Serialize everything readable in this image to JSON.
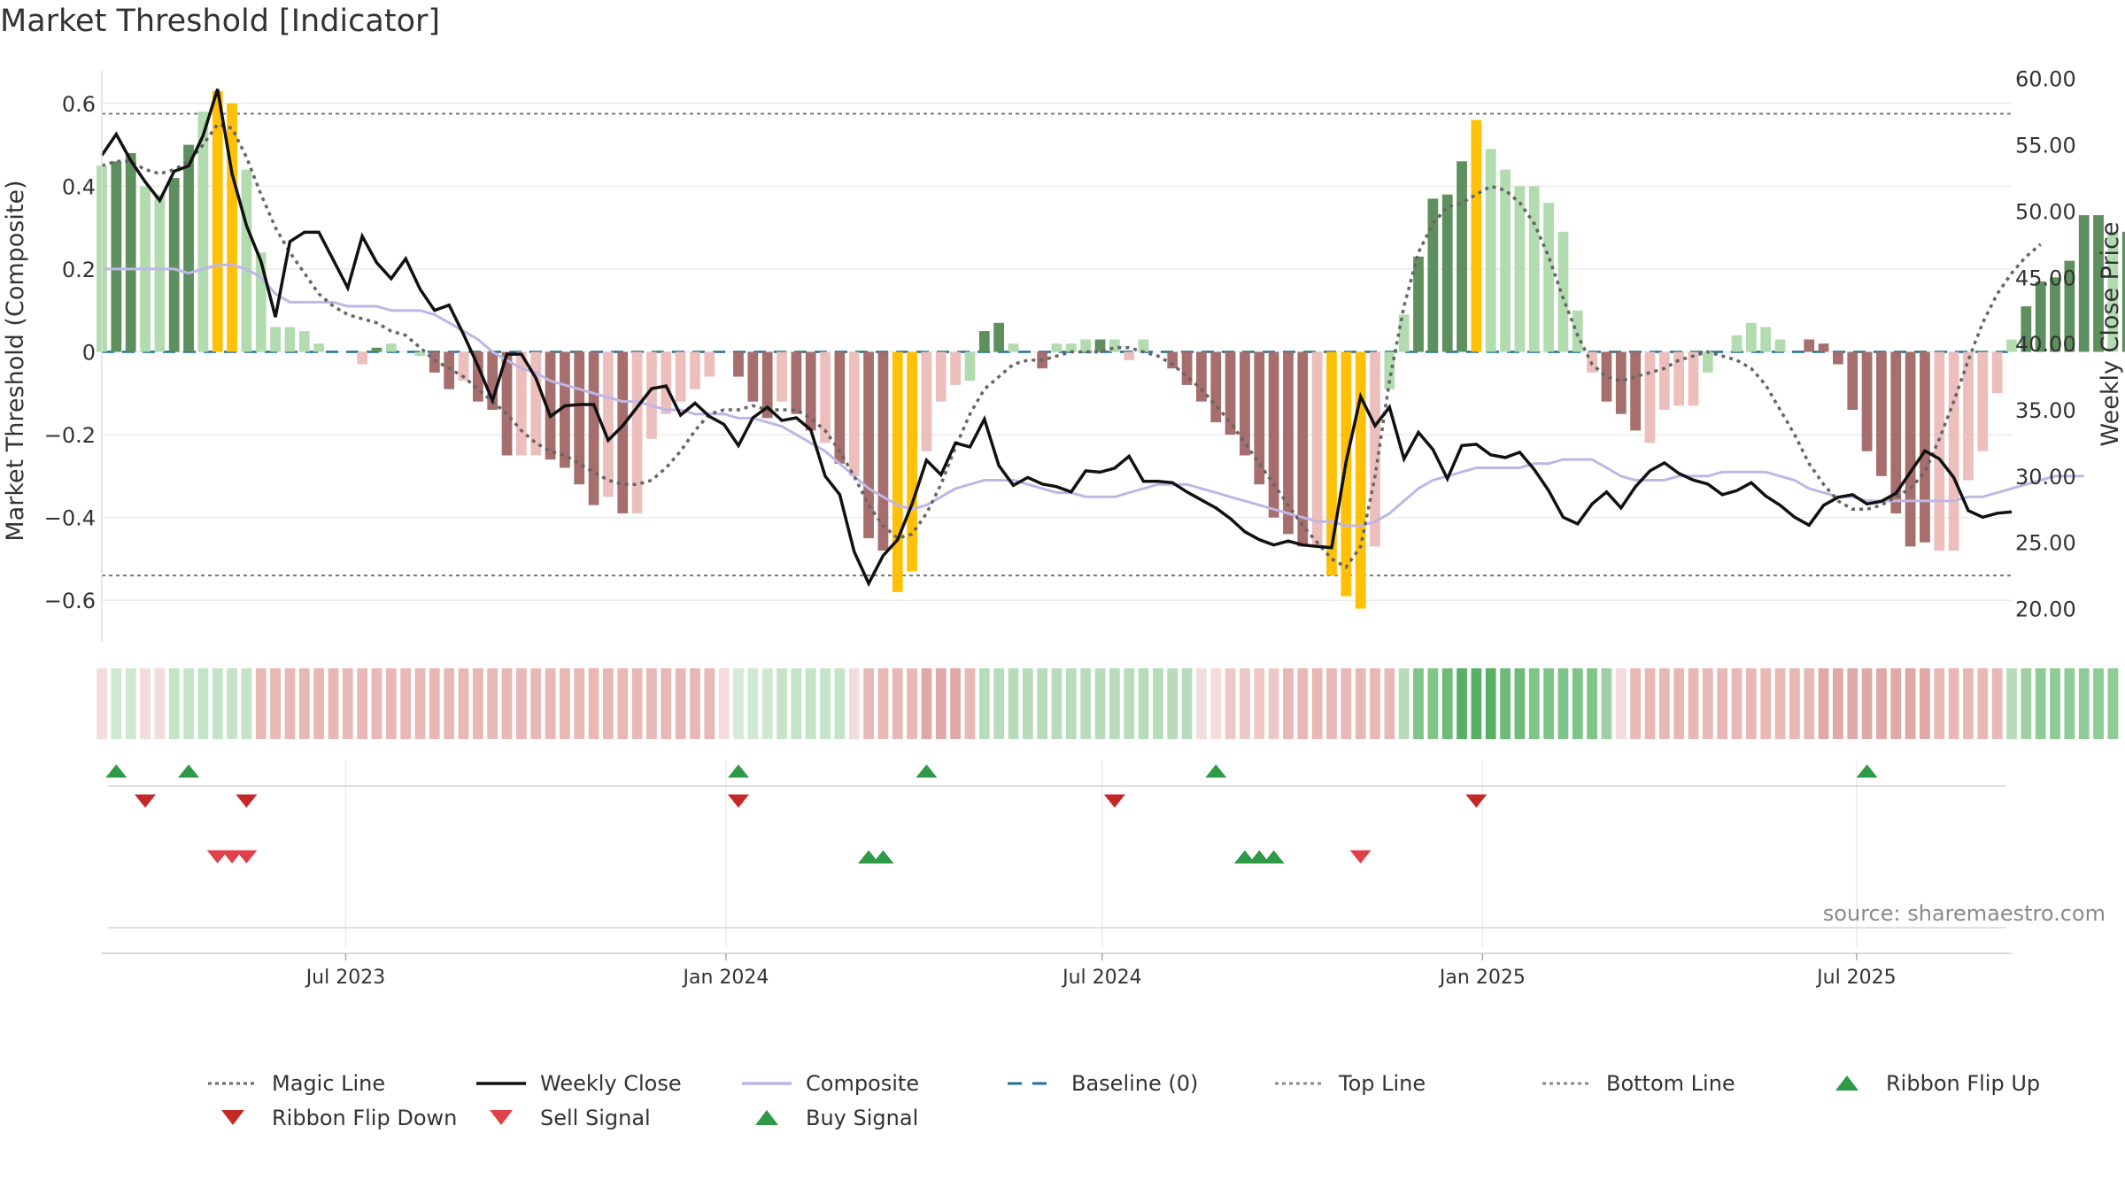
{
  "title": "Market Threshold [Indicator]",
  "source": "source: sharemaestro.com",
  "colors": {
    "bar_pos_strong": "#5e8f5e",
    "bar_pos_weak": "#b2dbb0",
    "bar_neg_strong": "#a66e6c",
    "bar_neg_weak": "#ecbfbd",
    "bar_extreme": "#ffc107",
    "weekly_close": "#111111",
    "composite": "#bfb6e6",
    "magic_line": "#666666",
    "baseline": "#1f6f9c",
    "threshold_line": "#777777",
    "buy": "#2e9946",
    "sell": "#d0313d"
  },
  "chart_data": {
    "type": "bar+line",
    "title": "Market Threshold [Indicator]",
    "ylabel_left": "Market Threshold (Composite)",
    "ylabel_right": "Weekly Close Price",
    "ylim_left": [
      -0.7,
      0.7
    ],
    "ylim_right": [
      17.5,
      61.25
    ],
    "yticks_left": [
      "0.6",
      "0.4",
      "0.2",
      "0",
      "−0.2",
      "−0.4",
      "−0.6"
    ],
    "yticks_left_values": [
      0.6,
      0.4,
      0.2,
      0,
      -0.2,
      -0.4,
      -0.6
    ],
    "yticks_right": [
      "60.00",
      "55.00",
      "50.00",
      "45.00",
      "40.00",
      "35.00",
      "30.00",
      "25.00",
      "20.00"
    ],
    "yticks_right_values": [
      60,
      55,
      50,
      45,
      40,
      35,
      30,
      25,
      20
    ],
    "x_start": "2023-03-05",
    "x_end": "2025-09-14",
    "xticks": [
      {
        "date": "2023-07-01",
        "label": "Jul 2023"
      },
      {
        "date": "2024-01-01",
        "label": "Jan 2024"
      },
      {
        "date": "2024-07-01",
        "label": "Jul 2024"
      },
      {
        "date": "2025-01-01",
        "label": "Jan 2025"
      },
      {
        "date": "2025-07-01",
        "label": "Jul 2025"
      }
    ],
    "top_line": 0.575,
    "bottom_line": -0.54,
    "baseline": 0,
    "grid": true,
    "legend_position": "bottom",
    "composite_bars": [
      0.45,
      0.46,
      0.48,
      0.4,
      0.38,
      0.42,
      0.5,
      0.58,
      0.63,
      0.6,
      0.44,
      0.24,
      0.06,
      0.06,
      0.05,
      0.02,
      0.0,
      0.0,
      -0.03,
      0.01,
      0.02,
      0.0,
      -0.01,
      -0.05,
      -0.09,
      -0.07,
      -0.12,
      -0.14,
      -0.25,
      -0.25,
      -0.25,
      -0.26,
      -0.28,
      -0.32,
      -0.37,
      -0.35,
      -0.39,
      -0.39,
      -0.21,
      -0.15,
      -0.12,
      -0.09,
      -0.06,
      0.0,
      -0.06,
      -0.12,
      -0.16,
      -0.12,
      -0.15,
      -0.19,
      -0.22,
      -0.27,
      -0.3,
      -0.45,
      -0.48,
      -0.58,
      -0.53,
      -0.24,
      -0.12,
      -0.08,
      -0.07,
      0.05,
      0.07,
      0.02,
      0.0,
      -0.04,
      0.02,
      0.02,
      0.03,
      0.03,
      0.03,
      -0.02,
      0.03,
      0.0,
      -0.04,
      -0.08,
      -0.12,
      -0.17,
      -0.2,
      -0.25,
      -0.32,
      -0.4,
      -0.44,
      -0.47,
      -0.47,
      -0.54,
      -0.59,
      -0.62,
      -0.47,
      -0.09,
      0.09,
      0.23,
      0.37,
      0.38,
      0.46,
      0.56,
      0.49,
      0.44,
      0.4,
      0.4,
      0.36,
      0.29,
      0.1,
      -0.05,
      -0.12,
      -0.15,
      -0.19,
      -0.22,
      -0.14,
      -0.13,
      -0.13,
      -0.05,
      0.0,
      0.04,
      0.07,
      0.06,
      0.03,
      0.0,
      0.03,
      0.02,
      -0.03,
      -0.14,
      -0.24,
      -0.3,
      -0.39,
      -0.47,
      -0.46,
      -0.48,
      -0.48,
      -0.31,
      -0.24,
      -0.1,
      0.03,
      0.11,
      0.17,
      0.18,
      0.22,
      0.33,
      0.33,
      0.29,
      0.29
    ],
    "bar_category_labels_note": "ps=strong positive, pw=weak positive, ns=strong negative, nw=weak negative, x=extreme",
    "bar_categories": [
      "pw",
      "ps",
      "ps",
      "pw",
      "pw",
      "ps",
      "ps",
      "pw",
      "x",
      "x",
      "pw",
      "pw",
      "pw",
      "pw",
      "pw",
      "pw",
      "pw",
      "nw",
      "nw",
      "ps",
      "pw",
      "pw",
      "pw",
      "ns",
      "ns",
      "nw",
      "ns",
      "ns",
      "ns",
      "nw",
      "nw",
      "ns",
      "ns",
      "ns",
      "ns",
      "nw",
      "ns",
      "nw",
      "nw",
      "nw",
      "nw",
      "nw",
      "nw",
      "nw",
      "ns",
      "ns",
      "ns",
      "nw",
      "ns",
      "ns",
      "nw",
      "ns",
      "nw",
      "ns",
      "ns",
      "x",
      "x",
      "nw",
      "nw",
      "nw",
      "pw",
      "ps",
      "ps",
      "pw",
      "pw",
      "ns",
      "pw",
      "pw",
      "pw",
      "ps",
      "pw",
      "nw",
      "pw",
      "pw",
      "ns",
      "ns",
      "ns",
      "ns",
      "ns",
      "ns",
      "ns",
      "ns",
      "ns",
      "ns",
      "nw",
      "x",
      "x",
      "x",
      "nw",
      "pw",
      "pw",
      "ps",
      "ps",
      "ps",
      "ps",
      "x",
      "pw",
      "pw",
      "pw",
      "pw",
      "pw",
      "pw",
      "pw",
      "nw",
      "ns",
      "ns",
      "ns",
      "nw",
      "nw",
      "nw",
      "nw",
      "pw",
      "pw",
      "pw",
      "pw",
      "pw",
      "pw",
      "ns",
      "ns",
      "ns",
      "ns",
      "ns",
      "ns",
      "ns",
      "ns",
      "ns",
      "ns",
      "nw",
      "nw",
      "nw",
      "nw",
      "nw",
      "pw",
      "ps",
      "ps",
      "ps",
      "ps",
      "ps",
      "ps",
      "pw",
      "ps"
    ],
    "weekly_close": [
      54.2,
      55.8,
      53.8,
      52.2,
      50.8,
      53.0,
      53.4,
      55.7,
      59.2,
      52.8,
      48.9,
      46.2,
      42.0,
      47.7,
      48.4,
      48.4,
      46.3,
      44.2,
      48.1,
      46.1,
      44.9,
      46.4,
      44.1,
      42.5,
      42.9,
      40.7,
      38.3,
      35.7,
      39.2,
      39.2,
      37.4,
      34.5,
      35.3,
      35.4,
      35.4,
      32.7,
      33.8,
      35.2,
      36.6,
      36.8,
      34.6,
      35.5,
      34.5,
      33.9,
      32.3,
      34.4,
      35.2,
      34.2,
      34.4,
      33.5,
      30.0,
      28.6,
      24.3,
      21.9,
      24.0,
      25.2,
      27.9,
      31.2,
      30.1,
      32.5,
      32.2,
      34.3,
      30.8,
      29.3,
      29.9,
      29.4,
      29.2,
      28.8,
      30.4,
      30.3,
      30.6,
      31.5,
      29.6,
      29.6,
      29.5,
      28.8,
      28.2,
      27.6,
      26.8,
      25.8,
      25.2,
      24.8,
      25.1,
      24.8,
      24.7,
      24.6,
      31.1,
      36.0,
      33.8,
      35.2,
      31.3,
      33.3,
      32.0,
      29.8,
      32.3,
      32.4,
      31.6,
      31.4,
      31.8,
      30.5,
      28.9,
      26.9,
      26.4,
      27.9,
      28.8,
      27.6,
      29.2,
      30.4,
      31.0,
      30.2,
      29.7,
      29.4,
      28.6,
      28.9,
      29.5,
      28.5,
      27.8,
      26.9,
      26.3,
      27.8,
      28.4,
      28.6,
      27.9,
      28.1,
      28.7,
      30.3,
      31.9,
      31.3,
      29.9,
      27.4,
      26.9,
      27.2,
      27.3
    ],
    "composite_line": [
      0.2,
      0.2,
      0.2,
      0.2,
      0.2,
      0.2,
      0.19,
      0.2,
      0.21,
      0.21,
      0.2,
      0.18,
      0.14,
      0.12,
      0.12,
      0.12,
      0.12,
      0.11,
      0.11,
      0.11,
      0.1,
      0.1,
      0.1,
      0.09,
      0.07,
      0.05,
      0.03,
      0.0,
      -0.02,
      -0.04,
      -0.05,
      -0.07,
      -0.08,
      -0.09,
      -0.1,
      -0.11,
      -0.12,
      -0.12,
      -0.13,
      -0.14,
      -0.14,
      -0.15,
      -0.15,
      -0.15,
      -0.16,
      -0.16,
      -0.17,
      -0.18,
      -0.2,
      -0.22,
      -0.24,
      -0.27,
      -0.3,
      -0.33,
      -0.35,
      -0.37,
      -0.38,
      -0.37,
      -0.35,
      -0.33,
      -0.32,
      -0.31,
      -0.31,
      -0.31,
      -0.32,
      -0.33,
      -0.34,
      -0.34,
      -0.35,
      -0.35,
      -0.35,
      -0.34,
      -0.33,
      -0.32,
      -0.32,
      -0.32,
      -0.33,
      -0.34,
      -0.35,
      -0.36,
      -0.37,
      -0.38,
      -0.39,
      -0.4,
      -0.41,
      -0.41,
      -0.42,
      -0.42,
      -0.41,
      -0.39,
      -0.36,
      -0.33,
      -0.31,
      -0.3,
      -0.29,
      -0.28,
      -0.28,
      -0.28,
      -0.28,
      -0.27,
      -0.27,
      -0.26,
      -0.26,
      -0.26,
      -0.28,
      -0.3,
      -0.31,
      -0.31,
      -0.31,
      -0.3,
      -0.3,
      -0.3,
      -0.29,
      -0.29,
      -0.29,
      -0.29,
      -0.3,
      -0.31,
      -0.33,
      -0.34,
      -0.35,
      -0.35,
      -0.36,
      -0.36,
      -0.36,
      -0.36,
      -0.36,
      -0.36,
      -0.36,
      -0.35,
      -0.35,
      -0.34,
      -0.33,
      -0.32,
      -0.31,
      -0.3,
      -0.3,
      -0.3
    ],
    "magic_line": [
      0.45,
      0.46,
      0.46,
      0.44,
      0.43,
      0.44,
      0.46,
      0.5,
      0.55,
      0.54,
      0.47,
      0.38,
      0.3,
      0.24,
      0.19,
      0.14,
      0.11,
      0.09,
      0.08,
      0.07,
      0.05,
      0.04,
      0.01,
      -0.02,
      -0.04,
      -0.06,
      -0.09,
      -0.12,
      -0.15,
      -0.19,
      -0.22,
      -0.24,
      -0.25,
      -0.27,
      -0.29,
      -0.31,
      -0.32,
      -0.32,
      -0.31,
      -0.28,
      -0.24,
      -0.19,
      -0.15,
      -0.14,
      -0.14,
      -0.13,
      -0.14,
      -0.14,
      -0.14,
      -0.16,
      -0.19,
      -0.24,
      -0.3,
      -0.37,
      -0.42,
      -0.45,
      -0.44,
      -0.39,
      -0.32,
      -0.23,
      -0.15,
      -0.09,
      -0.06,
      -0.03,
      -0.02,
      -0.02,
      -0.01,
      0.0,
      0.0,
      0.0,
      0.01,
      0.01,
      0.0,
      -0.01,
      -0.03,
      -0.06,
      -0.09,
      -0.13,
      -0.17,
      -0.22,
      -0.27,
      -0.32,
      -0.37,
      -0.42,
      -0.46,
      -0.5,
      -0.52,
      -0.47,
      -0.3,
      -0.07,
      0.11,
      0.24,
      0.31,
      0.35,
      0.36,
      0.38,
      0.4,
      0.39,
      0.36,
      0.31,
      0.23,
      0.13,
      0.04,
      -0.03,
      -0.06,
      -0.07,
      -0.06,
      -0.05,
      -0.04,
      -0.02,
      -0.01,
      0.0,
      -0.01,
      -0.02,
      -0.04,
      -0.08,
      -0.14,
      -0.2,
      -0.27,
      -0.32,
      -0.36,
      -0.38,
      -0.38,
      -0.37,
      -0.35,
      -0.33,
      -0.29,
      -0.21,
      -0.12,
      -0.02,
      0.07,
      0.14,
      0.19,
      0.23,
      0.26
    ],
    "ribbon_colors": [
      "#f2dcdc",
      "#cfe8d3",
      "#cfe8d3",
      "#f2dcdc",
      "#f2dcdc",
      "#c4e3c7",
      "#c4e3c7",
      "#c4e3c7",
      "#c4e3c7",
      "#c4e3c7",
      "#c4e3c7",
      "#e8b8b7",
      "#e8b8b7",
      "#e8b8b7",
      "#e8b8b7",
      "#e8b8b7",
      "#e8b8b7",
      "#e8b8b7",
      "#e8b8b7",
      "#e8b8b7",
      "#e8b8b7",
      "#e8b8b7",
      "#e8b8b7",
      "#e8b8b7",
      "#e8b8b7",
      "#e8b8b7",
      "#e8b8b7",
      "#e8b8b7",
      "#e8b8b7",
      "#e8b8b7",
      "#e8b8b7",
      "#e8b8b7",
      "#e8b8b7",
      "#e8b8b7",
      "#e8b8b7",
      "#e8b8b7",
      "#e8b8b7",
      "#e8b8b7",
      "#e8b8b7",
      "#e8b8b7",
      "#e8b8b7",
      "#e8b8b7",
      "#e8b8b7",
      "#f2dcdc",
      "#d5ead7",
      "#cfe8d3",
      "#cfe8d3",
      "#c4e3c7",
      "#c4e3c7",
      "#c4e3c7",
      "#c4e3c7",
      "#c4e3c7",
      "#f2dcdc",
      "#e8b8b7",
      "#e8b8b7",
      "#e8b8b7",
      "#e8b8b7",
      "#e0a8a6",
      "#e0a8a6",
      "#e0a8a6",
      "#e8b8b7",
      "#b8dcbb",
      "#b8dcbb",
      "#b8dcbb",
      "#b8dcbb",
      "#b8dcbb",
      "#b8dcbb",
      "#b8dcbb",
      "#b8dcbb",
      "#b8dcbb",
      "#b8dcbb",
      "#b8dcbb",
      "#b8dcbb",
      "#b8dcbb",
      "#b8dcbb",
      "#b8dcbb",
      "#f2dcdc",
      "#f2dcdc",
      "#eec8c7",
      "#eec8c7",
      "#eec8c7",
      "#eec8c7",
      "#e8b8b7",
      "#e8b8b7",
      "#e8b8b7",
      "#e8b8b7",
      "#e8b8b7",
      "#e8b8b7",
      "#e8b8b7",
      "#e8b8b7",
      "#b8dcbb",
      "#7fc488",
      "#7fc488",
      "#6cbb77",
      "#58b065",
      "#58b065",
      "#58b065",
      "#6cbb77",
      "#6cbb77",
      "#7fc488",
      "#7fc488",
      "#7fc488",
      "#7fc488",
      "#7fc488",
      "#9fd0a5",
      "#f2dcdc",
      "#e8b8b7",
      "#e8b8b7",
      "#e8b8b7",
      "#e8b8b7",
      "#e8b8b7",
      "#e8b8b7",
      "#e8b8b7",
      "#e8b8b7",
      "#e8b8b7",
      "#e8b8b7",
      "#e8b8b7",
      "#e8b8b7",
      "#e8b8b7",
      "#e0a8a6",
      "#e0a8a6",
      "#e0a8a6",
      "#e0a8a6",
      "#e0a8a6",
      "#e0a8a6",
      "#e0a8a6",
      "#e0a8a6",
      "#e8b8b7",
      "#e8b8b7",
      "#e8b8b7",
      "#e8b8b7",
      "#e8b8b7",
      "#b8dcbb",
      "#9fd0a5",
      "#8ecb97",
      "#8ecb97",
      "#8ecb97",
      "#8ecb97",
      "#8ecb97",
      "#8ecb97"
    ],
    "ribbon_flip_up_dates": [
      "2023-03-12",
      "2023-04-16",
      "2024-01-07",
      "2024-04-07",
      "2024-08-25",
      "2025-07-06"
    ],
    "ribbon_flip_down_dates": [
      "2023-03-26",
      "2023-05-14",
      "2024-01-07",
      "2024-07-07",
      "2024-12-29"
    ],
    "buy_signal_dates": [
      "2024-03-10",
      "2024-03-17",
      "2024-09-08",
      "2024-09-15",
      "2024-09-22"
    ],
    "sell_signal_dates": [
      "2023-04-30",
      "2023-05-07",
      "2023-05-14",
      "2024-11-03"
    ],
    "legend": [
      {
        "label": "Magic Line",
        "kind": "dotted",
        "color": "#666666"
      },
      {
        "label": "Weekly Close",
        "kind": "solid",
        "color": "#111111"
      },
      {
        "label": "Composite",
        "kind": "solid",
        "color": "#bfb6e6"
      },
      {
        "label": "Baseline (0)",
        "kind": "dashed",
        "color": "#1f6f9c"
      },
      {
        "label": "Top Line",
        "kind": "dotted",
        "color": "#888888"
      },
      {
        "label": "Bottom Line",
        "kind": "dotted",
        "color": "#888888"
      },
      {
        "label": "Ribbon Flip Up",
        "kind": "triangle-up",
        "color": "#2e9946"
      },
      {
        "label": "Ribbon Flip Down",
        "kind": "triangle-down",
        "color": "#c62828"
      },
      {
        "label": "Sell Signal",
        "kind": "triangle-down",
        "color": "#e0404a"
      },
      {
        "label": "Buy Signal",
        "kind": "triangle-up",
        "color": "#2e9946"
      }
    ]
  }
}
